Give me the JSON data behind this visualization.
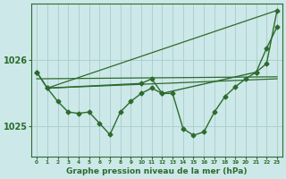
{
  "title": "Graphe pression niveau de la mer (hPa)",
  "background_color": "#cce8e8",
  "grid_color": "#aacccc",
  "line_color": "#2d6b2d",
  "xlim": [
    -0.5,
    23.5
  ],
  "ylim": [
    1024.55,
    1026.85
  ],
  "yticks": [
    1025,
    1026
  ],
  "xtick_labels": [
    "0",
    "1",
    "2",
    "3",
    "4",
    "5",
    "6",
    "7",
    "8",
    "9",
    "10",
    "11",
    "12",
    "13",
    "14",
    "15",
    "16",
    "17",
    "18",
    "19",
    "20",
    "21",
    "22",
    "23"
  ],
  "line_zigzag_x": [
    0,
    1,
    2,
    3,
    4,
    5,
    6,
    7,
    8,
    9,
    10,
    11,
    12,
    13,
    14,
    15,
    16,
    17,
    18,
    19,
    20,
    21,
    22,
    23
  ],
  "line_zigzag_y": [
    1025.82,
    1025.58,
    1025.38,
    1025.22,
    1025.2,
    1025.22,
    1025.05,
    1024.88,
    1025.22,
    1025.38,
    1025.5,
    1025.58,
    1025.5,
    1025.5,
    1024.97,
    1024.87,
    1024.92,
    1025.22,
    1025.45,
    1025.6,
    1025.72,
    1025.82,
    1025.95,
    1026.75
  ],
  "line_sparse_x": [
    0,
    1,
    10,
    11,
    12,
    21,
    22,
    23
  ],
  "line_sparse_y": [
    1025.82,
    1025.58,
    1025.65,
    1025.72,
    1025.5,
    1025.82,
    1026.18,
    1026.5
  ],
  "trend1_x": [
    1,
    23
  ],
  "trend1_y": [
    1025.58,
    1026.75
  ],
  "trend2_x": [
    1,
    23
  ],
  "trend2_y": [
    1025.58,
    1025.72
  ],
  "trend3_x": [
    0,
    23
  ],
  "trend3_y": [
    1025.72,
    1025.75
  ]
}
